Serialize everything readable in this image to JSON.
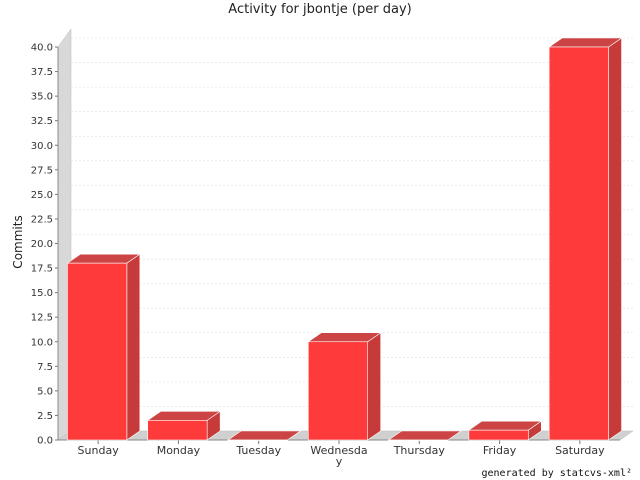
{
  "chart_data": {
    "type": "bar",
    "title": "Activity for jbontje (per day)",
    "xlabel": "",
    "ylabel": "Commits",
    "categories": [
      "Sunday",
      "Monday",
      "Tuesday",
      "Wednesday",
      "Thursday",
      "Friday",
      "Saturday"
    ],
    "category_labels": [
      [
        "Sunday"
      ],
      [
        "Monday"
      ],
      [
        "Tuesday"
      ],
      [
        "Wednesda",
        "y"
      ],
      [
        "Thursday"
      ],
      [
        "Friday"
      ],
      [
        "Saturday"
      ]
    ],
    "values": [
      18,
      2,
      0,
      10,
      0,
      1,
      40
    ],
    "ylim": [
      0,
      40
    ],
    "yticks": [
      "0.0",
      "2.5",
      "5.0",
      "7.5",
      "10.0",
      "12.5",
      "15.0",
      "17.5",
      "20.0",
      "22.5",
      "25.0",
      "27.5",
      "30.0",
      "32.5",
      "35.0",
      "37.5",
      "40.0"
    ],
    "grid": true,
    "style": "3d",
    "bar_color": "#ff3a3a"
  },
  "footer": "generated by statcvs-xml²"
}
